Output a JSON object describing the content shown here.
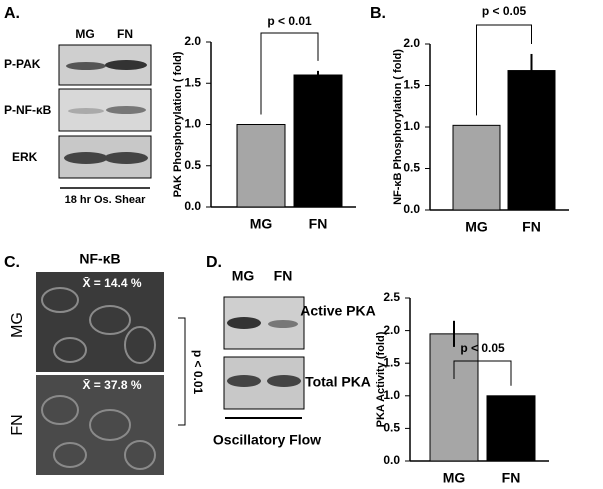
{
  "panels": {
    "a": {
      "label": "A.",
      "lanes": [
        "MG",
        "FN"
      ],
      "rows": [
        "P-PAK",
        "P-NF-κB",
        "ERK"
      ],
      "caption": "18 hr Os. Shear"
    },
    "b": {
      "label": "B."
    },
    "c": {
      "label": "C.",
      "title": "NF-κB",
      "rows": [
        "MG",
        "FN"
      ],
      "stats": [
        "X̄ = 14.4 %",
        "X̄ = 37.8 %"
      ],
      "p": "p < 0.01"
    },
    "d": {
      "label": "D.",
      "lanes": [
        "MG",
        "FN"
      ],
      "rows": [
        "Active PKA",
        "Total PKA"
      ],
      "caption": "Oscillatory Flow"
    }
  },
  "chart_data": [
    {
      "type": "bar",
      "ylabel": "PAK Phosphorylation ( fold)",
      "annotation": "p < 0.01",
      "categories": [
        "MG",
        "FN"
      ],
      "values": [
        1.0,
        1.6
      ],
      "errors": [
        null,
        0.05
      ],
      "colors": [
        "#a6a6a6",
        "#000000"
      ],
      "ylim": [
        0,
        2.0
      ],
      "yticks": [
        {
          "value": 0,
          "label": "0.0"
        },
        {
          "value": 0.5,
          "label": "0.5"
        },
        {
          "value": 1,
          "label": "1.0"
        },
        {
          "value": 1.5,
          "label": "1.5"
        },
        {
          "value": 2,
          "label": "2.0"
        }
      ]
    },
    {
      "type": "bar",
      "ylabel": "NF-κB Phosphorylation ( fold)",
      "annotation": "p < 0.05",
      "categories": [
        "MG",
        "FN"
      ],
      "values": [
        1.02,
        1.68
      ],
      "errors": [
        null,
        0.2
      ],
      "colors": [
        "#a6a6a6",
        "#000000"
      ],
      "ylim": [
        0,
        2.0
      ],
      "yticks": [
        {
          "value": 0,
          "label": "0.0"
        },
        {
          "value": 0.5,
          "label": "0.5"
        },
        {
          "value": 1,
          "label": "1.0"
        },
        {
          "value": 1.5,
          "label": "1.5"
        },
        {
          "value": 2,
          "label": "2.0"
        }
      ]
    },
    {
      "type": "bar",
      "ylabel": "PKA Activity (fold)",
      "annotation": "p < 0.05",
      "categories": [
        "MG",
        "FN"
      ],
      "values": [
        1.95,
        1.0
      ],
      "errors": [
        0.2,
        null
      ],
      "colors": [
        "#a6a6a6",
        "#000000"
      ],
      "ylim": [
        0,
        2.5
      ],
      "yticks": [
        {
          "value": 0,
          "label": "0.0"
        },
        {
          "value": 0.5,
          "label": "0.5"
        },
        {
          "value": 1,
          "label": "1.0"
        },
        {
          "value": 1.5,
          "label": "1.5"
        },
        {
          "value": 2,
          "label": "2.0"
        },
        {
          "value": 2.5,
          "label": "2.5"
        }
      ]
    }
  ]
}
